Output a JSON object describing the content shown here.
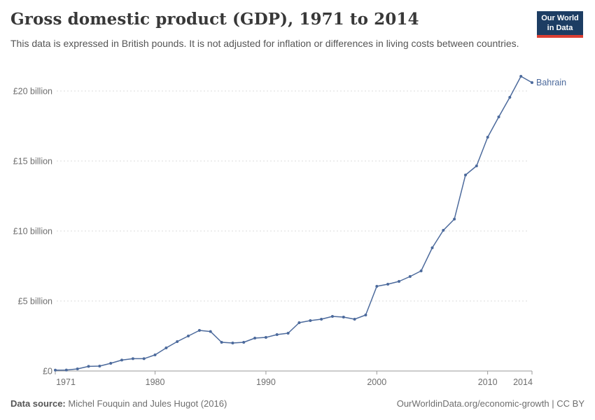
{
  "header": {
    "title": "Gross domestic product (GDP), 1971 to 2014",
    "subtitle": "This data is expressed in British pounds. It is not adjusted for inflation or differences in living costs between countries."
  },
  "logo": {
    "line1": "Our World",
    "line2": "in Data"
  },
  "chart_data": {
    "type": "line",
    "title": "Gross domestic product (GDP), 1971 to 2014",
    "xlabel": "",
    "ylabel": "",
    "xlim": [
      1971,
      2014
    ],
    "ylim": [
      0,
      21.5
    ],
    "grid": "horizontal-dashed",
    "legend": "end-of-line-label",
    "x_ticks": [
      {
        "value": 1971,
        "label": "1971"
      },
      {
        "value": 1980,
        "label": "1980"
      },
      {
        "value": 1990,
        "label": "1990"
      },
      {
        "value": 2000,
        "label": "2000"
      },
      {
        "value": 2010,
        "label": "2010"
      },
      {
        "value": 2014,
        "label": "2014"
      }
    ],
    "y_ticks": [
      {
        "value": 0,
        "label": "£0"
      },
      {
        "value": 5,
        "label": "£5 billion"
      },
      {
        "value": 10,
        "label": "£10 billion"
      },
      {
        "value": 15,
        "label": "£15 billion"
      },
      {
        "value": 20,
        "label": "£20 billion"
      }
    ],
    "series": [
      {
        "name": "Bahrain",
        "color": "#4c6a9c",
        "x": [
          1971,
          1972,
          1973,
          1974,
          1975,
          1976,
          1977,
          1978,
          1979,
          1980,
          1981,
          1982,
          1983,
          1984,
          1985,
          1986,
          1987,
          1988,
          1989,
          1990,
          1991,
          1992,
          1993,
          1994,
          1995,
          1996,
          1997,
          1998,
          1999,
          2000,
          2001,
          2002,
          2003,
          2004,
          2005,
          2006,
          2007,
          2008,
          2009,
          2010,
          2011,
          2012,
          2013,
          2014
        ],
        "y": [
          0.06,
          0.07,
          0.15,
          0.33,
          0.35,
          0.55,
          0.78,
          0.88,
          0.88,
          1.15,
          1.65,
          2.1,
          2.5,
          2.9,
          2.82,
          2.05,
          2.0,
          2.05,
          2.35,
          2.4,
          2.6,
          2.7,
          3.45,
          3.6,
          3.7,
          3.9,
          3.85,
          3.7,
          4.0,
          6.05,
          6.2,
          6.4,
          6.75,
          7.15,
          8.8,
          10.05,
          10.85,
          14.0,
          14.65,
          16.7,
          18.15,
          19.55,
          21.05,
          20.6
        ],
        "unit": "billion £"
      }
    ]
  },
  "colors": {
    "line": "#4c6a9c",
    "grid": "#dddddd",
    "axis": "#999999",
    "tick_label": "#6e6e6e",
    "logo_bg": "#1d3d63",
    "logo_bar": "#dc3e32"
  },
  "footer": {
    "source_label": "Data source:",
    "source_text": " Michel Fouquin and Jules Hugot (2016)",
    "link_text": "OurWorldinData.org/economic-growth | CC BY"
  }
}
